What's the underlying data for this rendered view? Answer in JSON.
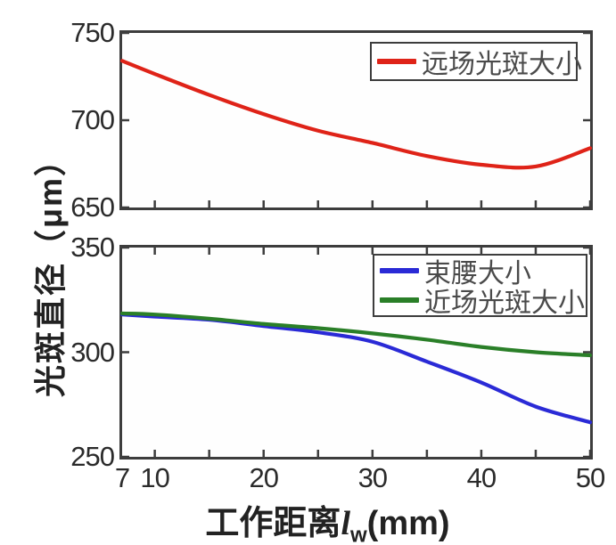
{
  "figure": {
    "ylabel": "光斑直径（μm）",
    "xlabel": {
      "prefix": "工作距离",
      "var": "l",
      "sub": "w",
      "unit": "(mm)"
    }
  },
  "axes": {
    "top": {
      "ytick_labels": [
        "750",
        "700",
        "650"
      ]
    },
    "bottom": {
      "ytick_labels": [
        "350",
        "300",
        "250"
      ]
    },
    "xtick_labels": [
      {
        "value": 7,
        "label": "7"
      },
      {
        "value": 10,
        "label": "10"
      },
      {
        "value": 20,
        "label": "20"
      },
      {
        "value": 30,
        "label": "30"
      },
      {
        "value": 40,
        "label": "40"
      },
      {
        "value": 50,
        "label": "50"
      }
    ]
  },
  "chart_data": [
    {
      "type": "line",
      "subplot": "top",
      "x": [
        7,
        10,
        15,
        20,
        25,
        30,
        35,
        40,
        45,
        50
      ],
      "xlim": [
        7,
        50
      ],
      "ylim": [
        650,
        750
      ],
      "xticks": [
        10,
        15,
        20,
        25,
        30,
        35,
        40,
        45,
        50
      ],
      "yticks": [
        650,
        700,
        750
      ],
      "xtick_mirror": false,
      "grid": false,
      "legend_position": "top-right",
      "series": [
        {
          "name": "远场光斑大小",
          "color": "#df2318",
          "values": [
            734,
            726.5,
            714.5,
            703.5,
            694,
            687,
            679.5,
            674.5,
            673.5,
            684
          ]
        }
      ]
    },
    {
      "type": "line",
      "subplot": "bottom",
      "x": [
        7,
        10,
        15,
        20,
        25,
        30,
        35,
        40,
        45,
        50
      ],
      "xlim": [
        7,
        50
      ],
      "ylim": [
        250,
        350
      ],
      "xticks": [
        10,
        15,
        20,
        25,
        30,
        35,
        40,
        45,
        50
      ],
      "yticks": [
        250,
        300,
        350
      ],
      "xtick_mirror": true,
      "grid": false,
      "legend_position": "top-right",
      "series": [
        {
          "name": "束腰大小",
          "color": "#2a2ad6",
          "values": [
            318,
            317,
            315.5,
            312.5,
            309.5,
            305,
            295.5,
            285.5,
            274,
            266.5
          ]
        },
        {
          "name": "近场光斑大小",
          "color": "#2a7f28",
          "values": [
            318.5,
            318,
            316,
            313.5,
            311.5,
            309,
            306,
            302.5,
            300,
            298.5
          ]
        }
      ]
    }
  ]
}
